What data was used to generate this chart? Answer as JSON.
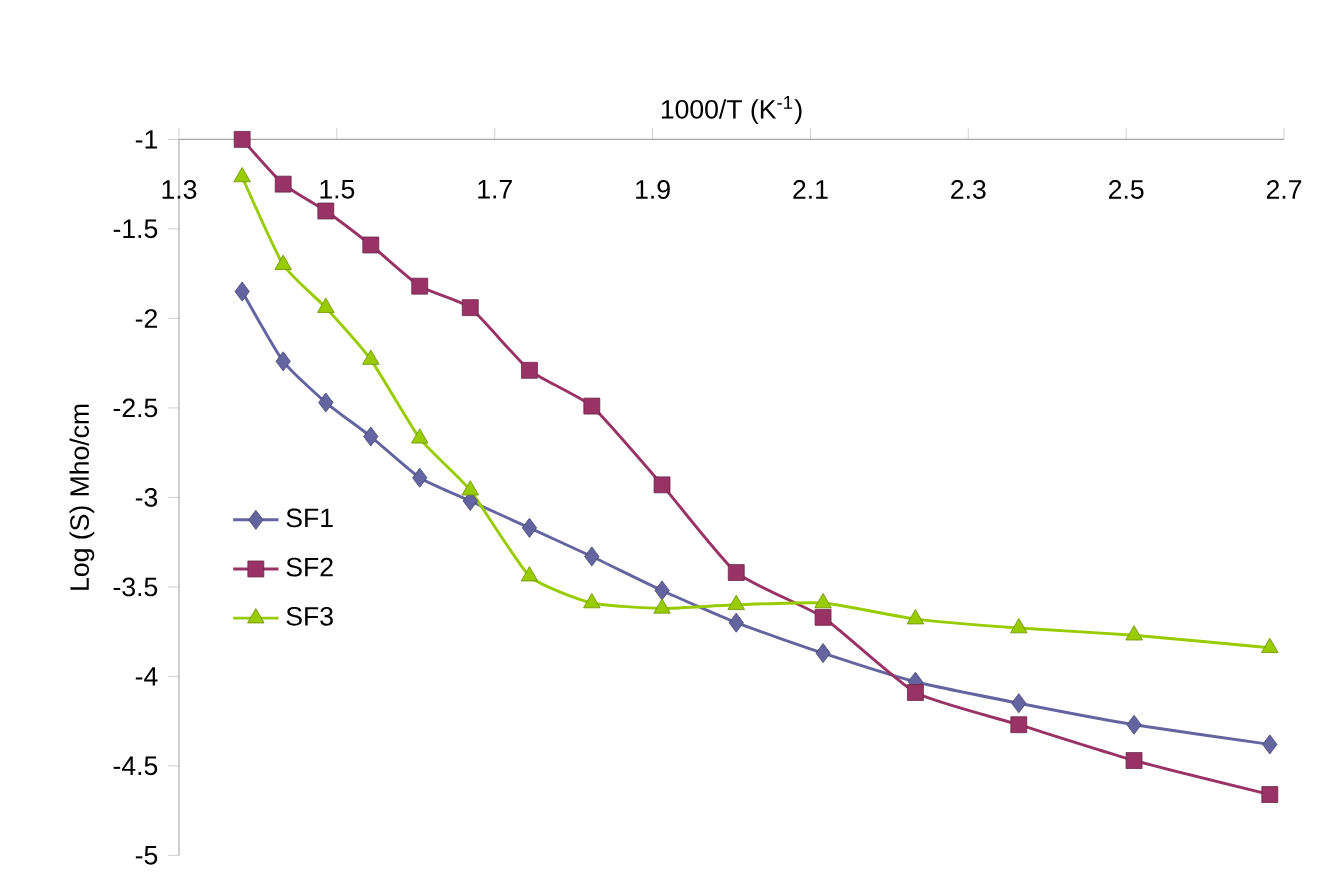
{
  "chart_data": {
    "type": "line",
    "xlabel": "1000/T (K$^{-1}$)",
    "ylabel": "Log (S) Mho/cm",
    "xlim": [
      1.3,
      2.7
    ],
    "xticks": [
      1.3,
      1.5,
      1.7,
      1.9,
      2.1,
      2.3,
      2.5,
      2.7
    ],
    "ylim": [
      -5,
      -1
    ],
    "yticks": [
      -5,
      -4.5,
      -4,
      -3.5,
      -3,
      -2.5,
      -2,
      -1.5,
      -1
    ],
    "x": [
      1.38,
      1.432,
      1.486,
      1.543,
      1.605,
      1.669,
      1.744,
      1.823,
      1.912,
      2.006,
      2.116,
      2.233,
      2.364,
      2.51,
      2.682
    ],
    "legend": "left",
    "grid": false,
    "line_style": "solid",
    "series": [
      {
        "name": "SF1",
        "color": "#6464a0",
        "marker": "diamond",
        "values": [
          -1.85,
          -2.24,
          -2.47,
          -2.66,
          -2.89,
          -3.02,
          -3.17,
          -3.33,
          -3.52,
          -3.7,
          -3.87,
          -4.03,
          -4.15,
          -4.27,
          -4.38
        ]
      },
      {
        "name": "SF2",
        "color": "#993366",
        "marker": "square",
        "values": [
          -1.0,
          -1.25,
          -1.4,
          -1.59,
          -1.82,
          -1.94,
          -2.29,
          -2.49,
          -2.93,
          -3.42,
          -3.67,
          -4.09,
          -4.27,
          -4.47,
          -4.66
        ]
      },
      {
        "name": "SF3",
        "color": "#99cc00",
        "marker": "triangle",
        "values": [
          -1.21,
          -1.7,
          -1.94,
          -2.23,
          -2.67,
          -2.96,
          -3.44,
          -3.59,
          -3.62,
          -3.6,
          -3.59,
          -3.68,
          -3.73,
          -3.77,
          -3.84
        ]
      }
    ]
  }
}
